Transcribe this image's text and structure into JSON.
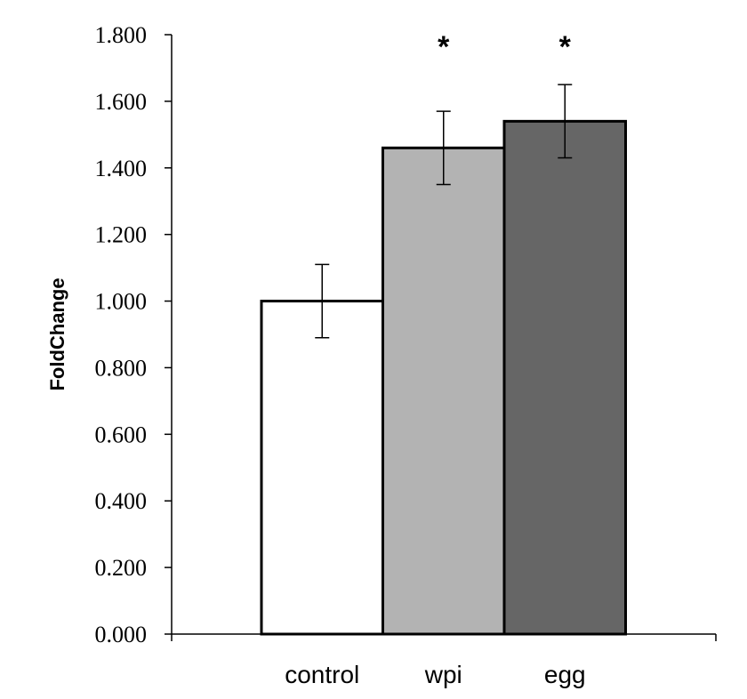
{
  "chart_data": {
    "type": "bar",
    "title": "",
    "xlabel": "",
    "ylabel": "FoldChange",
    "ylim": [
      0,
      1.8
    ],
    "yticks": [
      "0.000",
      "0.200",
      "0.400",
      "0.600",
      "0.800",
      "1.000",
      "1.200",
      "1.400",
      "1.600",
      "1.800"
    ],
    "categories": [
      "control",
      "wpi",
      "egg"
    ],
    "values": [
      1.0,
      1.46,
      1.54
    ],
    "errors": [
      0.11,
      0.11,
      0.11
    ],
    "annotations": [
      "",
      "*",
      "*"
    ],
    "colors": [
      "#ffffff",
      "#b3b3b3",
      "#666666"
    ],
    "grid": false,
    "legend": "none"
  }
}
